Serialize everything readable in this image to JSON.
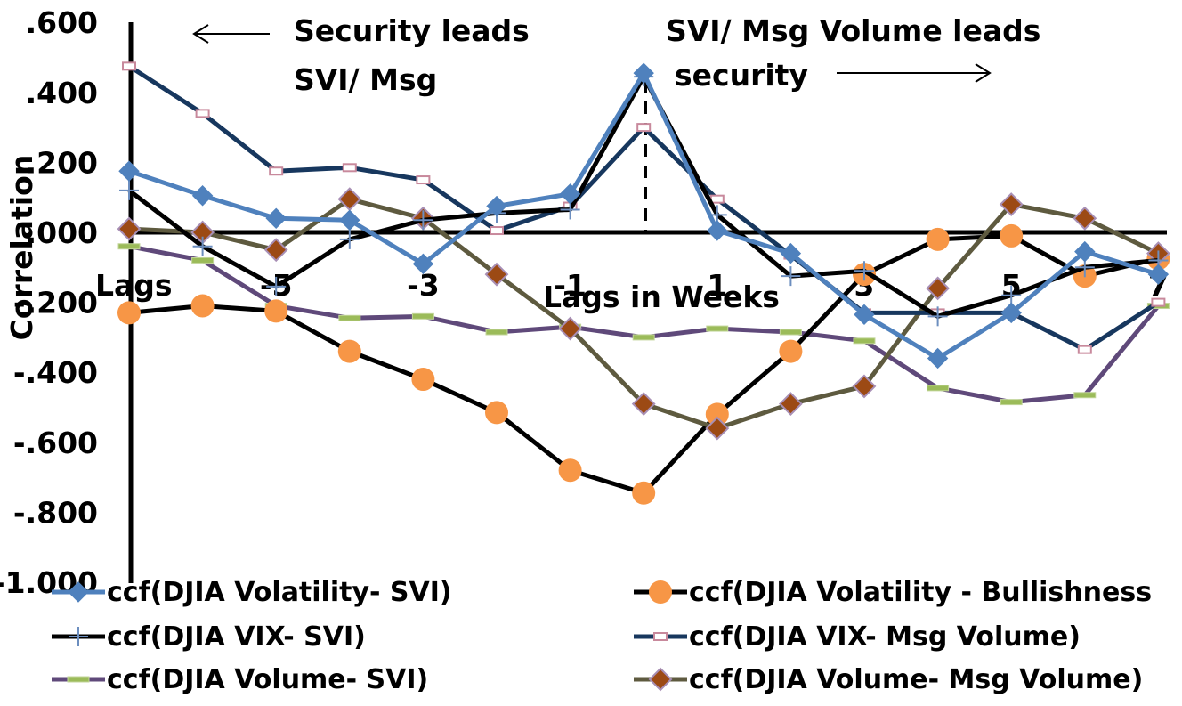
{
  "chart_data": {
    "type": "line",
    "title": "",
    "xlabel": "Lags in Weeks",
    "ylabel": "Correlation",
    "ylim": [
      -1.0,
      0.6
    ],
    "y_ticks": [
      ".600",
      ".400",
      ".200",
      ".000",
      "-.200",
      "-.400",
      "-.600",
      "-.800",
      "-1.000"
    ],
    "y_tick_values": [
      0.6,
      0.4,
      0.2,
      0.0,
      -0.2,
      -0.4,
      -0.6,
      -0.8,
      -1.0
    ],
    "x": [
      -7,
      -6,
      -5,
      -4,
      -3,
      -2,
      -1,
      0,
      1,
      2,
      3,
      4,
      5,
      6,
      7
    ],
    "x_tick_labels": [
      {
        "x": -7,
        "label": "Lags"
      },
      {
        "x": -5,
        "label": "-5"
      },
      {
        "x": -3,
        "label": "-3"
      },
      {
        "x": -1,
        "label": "-1"
      },
      {
        "x": 1,
        "label": "1"
      },
      {
        "x": 3,
        "label": "3"
      },
      {
        "x": 5,
        "label": "5"
      },
      {
        "x": 7,
        "label": "7"
      }
    ],
    "annotations": {
      "left_line1": "Security leads",
      "left_line2": "SVI/ Msg",
      "right_line1": "SVI/ Msg Volume leads",
      "right_line2": "security"
    },
    "legend_position": "bottom",
    "series": [
      {
        "name": "ccf(DJIA Volatility- SVI)",
        "color": "#4f81bd",
        "marker": "diamond",
        "values": [
          0.175,
          0.105,
          0.04,
          0.035,
          -0.09,
          0.075,
          0.11,
          0.455,
          0.005,
          -0.06,
          -0.235,
          -0.36,
          -0.23,
          -0.055,
          -0.12
        ]
      },
      {
        "name": "ccf(DJIA Volatility - Bullishness",
        "color": "#f79646",
        "marker": "circle",
        "values": [
          -0.23,
          -0.21,
          -0.225,
          -0.34,
          -0.42,
          -0.515,
          -0.68,
          -0.745,
          -0.52,
          -0.34,
          -0.12,
          -0.02,
          -0.01,
          -0.125,
          -0.075
        ]
      },
      {
        "name": "ccf(DJIA VIX- SVI)",
        "color": "#000000",
        "marker": "plus",
        "values": [
          0.12,
          -0.04,
          -0.155,
          -0.02,
          0.035,
          0.055,
          0.065,
          0.445,
          0.05,
          -0.125,
          -0.11,
          -0.24,
          -0.18,
          -0.1,
          -0.08
        ]
      },
      {
        "name": "ccf(DJIA VIX- Msg Volume)",
        "color": "#17375e",
        "marker": "square",
        "values": [
          0.475,
          0.34,
          0.175,
          0.185,
          0.15,
          0.005,
          0.075,
          0.3,
          0.095,
          -0.065,
          -0.23,
          -0.23,
          -0.23,
          -0.335,
          -0.2
        ]
      },
      {
        "name": "ccf(DJIA Volume- SVI)",
        "color": "#5f497a",
        "marker": "dash",
        "values": [
          -0.04,
          -0.08,
          -0.21,
          -0.245,
          -0.24,
          -0.285,
          -0.27,
          -0.3,
          -0.275,
          -0.285,
          -0.31,
          -0.445,
          -0.485,
          -0.465,
          -0.21
        ]
      },
      {
        "name": "ccf(DJIA Volume- Msg Volume)",
        "color": "#5e5a3f",
        "marker": "diamond-brown",
        "values": [
          0.01,
          0.0,
          -0.05,
          0.095,
          0.04,
          -0.12,
          -0.275,
          -0.49,
          -0.56,
          -0.49,
          -0.44,
          -0.16,
          0.08,
          0.04,
          -0.06
        ]
      }
    ]
  }
}
